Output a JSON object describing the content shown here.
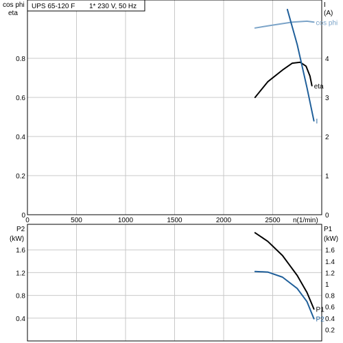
{
  "header": {
    "pump": "UPS 65-120 F",
    "supply": "1* 230 V, 50 Hz"
  },
  "colors": {
    "eta": "#000000",
    "cos_phi": "#7aa3c8",
    "current": "#1f5f9a",
    "P1": "#000000",
    "P2": "#1f5f9a",
    "grid": "#c8c8c8"
  },
  "chart_data": [
    {
      "type": "line",
      "xlabel": "n(1/min)",
      "ylabel_left_top": "cos phi",
      "ylabel_left_bottom": "eta",
      "ylabel_right_top": "I",
      "ylabel_right_unit": "(A)",
      "xlim": [
        0,
        3000
      ],
      "x_ticks": [
        "0",
        "500",
        "1000",
        "1500",
        "2000",
        "2500"
      ],
      "ylim_left": [
        0,
        1.0
      ],
      "y_ticks_left": [
        "0",
        "0.2",
        "0.4",
        "0.6",
        "0.8"
      ],
      "ylim_right": [
        0,
        5
      ],
      "y_ticks_right": [
        "0",
        "1",
        "2",
        "3",
        "4"
      ],
      "grid": true,
      "series": [
        {
          "name": "cos phi",
          "axis": "left",
          "x": [
            2320,
            2500,
            2700,
            2850,
            2920
          ],
          "y": [
            0.955,
            0.97,
            0.985,
            0.99,
            0.985
          ]
        },
        {
          "name": "eta",
          "axis": "left",
          "x": [
            2320,
            2450,
            2600,
            2700,
            2780,
            2840,
            2880,
            2900
          ],
          "y": [
            0.6,
            0.68,
            0.74,
            0.775,
            0.78,
            0.76,
            0.71,
            0.66
          ]
        },
        {
          "name": "I",
          "axis": "right",
          "x": [
            2650,
            2750,
            2850,
            2920
          ],
          "y": [
            5.25,
            4.35,
            3.25,
            2.4
          ]
        }
      ]
    },
    {
      "type": "line",
      "xlabel": "",
      "ylabel_left_top": "P2",
      "ylabel_left_unit": "(kW)",
      "ylabel_right_top": "P1",
      "ylabel_right_unit": "(kW)",
      "xlim": [
        0,
        3000
      ],
      "ylim_left": [
        0,
        2.0
      ],
      "y_ticks_left": [
        "0.4",
        "0.8",
        "1.2",
        "1.6"
      ],
      "ylim_right": [
        0,
        2.0
      ],
      "y_ticks_right": [
        "0.2",
        "0.4",
        "0.6",
        "0.8",
        "1",
        "1.2",
        "1.4",
        "1.6"
      ],
      "grid": true,
      "series": [
        {
          "name": "P1",
          "axis": "right",
          "x": [
            2320,
            2450,
            2600,
            2750,
            2850,
            2920
          ],
          "y": [
            1.9,
            1.75,
            1.5,
            1.15,
            0.85,
            0.56
          ]
        },
        {
          "name": "P2",
          "axis": "left",
          "x": [
            2320,
            2450,
            2600,
            2750,
            2850,
            2920
          ],
          "y": [
            1.22,
            1.21,
            1.12,
            0.92,
            0.69,
            0.39
          ]
        }
      ]
    }
  ]
}
